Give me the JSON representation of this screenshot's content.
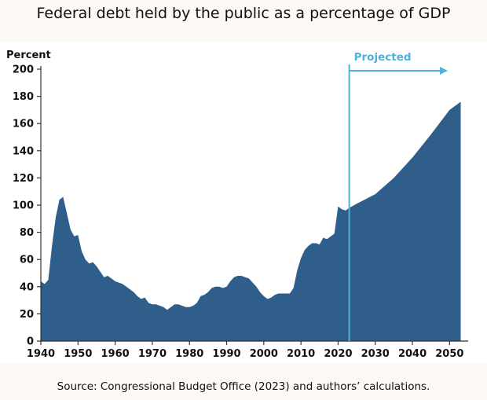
{
  "title": "Federal debt held by the public as a percentage of GDP",
  "source": "Source: Congressional Budget Office (2023) and authors’ calculations.",
  "colors": {
    "area": "#2f5e8a",
    "projection": "#4fb1d8",
    "axis": "#333333"
  },
  "chart_data": {
    "type": "area",
    "ylabel": "Percent",
    "ylim": [
      0,
      200
    ],
    "xlim": [
      1940,
      2055
    ],
    "y_ticks": [
      "0",
      "20",
      "40",
      "60",
      "80",
      "100",
      "120",
      "140",
      "160",
      "180",
      "200"
    ],
    "x_ticks": [
      "1940",
      "1950",
      "1960",
      "1970",
      "1980",
      "1990",
      "2000",
      "2010",
      "2020",
      "2030",
      "2040",
      "2050"
    ],
    "grid": false,
    "annotation": {
      "label": "Projected",
      "x": 2023
    },
    "series": [
      {
        "x": [
          1940,
          1941,
          1942,
          1943,
          1944,
          1945,
          1946,
          1947,
          1948,
          1949,
          1950,
          1951,
          1952,
          1953,
          1954,
          1955,
          1956,
          1957,
          1958,
          1959,
          1960,
          1961,
          1962,
          1963,
          1964,
          1965,
          1966,
          1967,
          1968,
          1969,
          1970,
          1971,
          1972,
          1973,
          1974,
          1975,
          1976,
          1977,
          1978,
          1979,
          1980,
          1981,
          1982,
          1983,
          1984,
          1985,
          1986,
          1987,
          1988,
          1989,
          1990,
          1991,
          1992,
          1993,
          1994,
          1995,
          1996,
          1997,
          1998,
          1999,
          2000,
          2001,
          2002,
          2003,
          2004,
          2005,
          2006,
          2007,
          2008,
          2009,
          2010,
          2011,
          2012,
          2013,
          2014,
          2015,
          2016,
          2017,
          2018,
          2019,
          2020,
          2021,
          2022,
          2023,
          2025,
          2030,
          2035,
          2040,
          2045,
          2050,
          2053
        ],
        "values": [
          44,
          42,
          45,
          70,
          91,
          104,
          106,
          94,
          82,
          77,
          78,
          66,
          60,
          57,
          58,
          55,
          51,
          47,
          48,
          46,
          44,
          43,
          42,
          40,
          38,
          36,
          33,
          31,
          32,
          28,
          27,
          27,
          26,
          25,
          23,
          25,
          27,
          27,
          26,
          25,
          25,
          26,
          28,
          33,
          34,
          36,
          39,
          40,
          40,
          39,
          40,
          44,
          47,
          48,
          48,
          47,
          46,
          43,
          40,
          36,
          33,
          31,
          32,
          34,
          35,
          35,
          35,
          35,
          39,
          52,
          61,
          67,
          70,
          72,
          72,
          71,
          76,
          75,
          77,
          79,
          99,
          97,
          96,
          98,
          101,
          108,
          120,
          135,
          152,
          170,
          176
        ]
      }
    ]
  }
}
